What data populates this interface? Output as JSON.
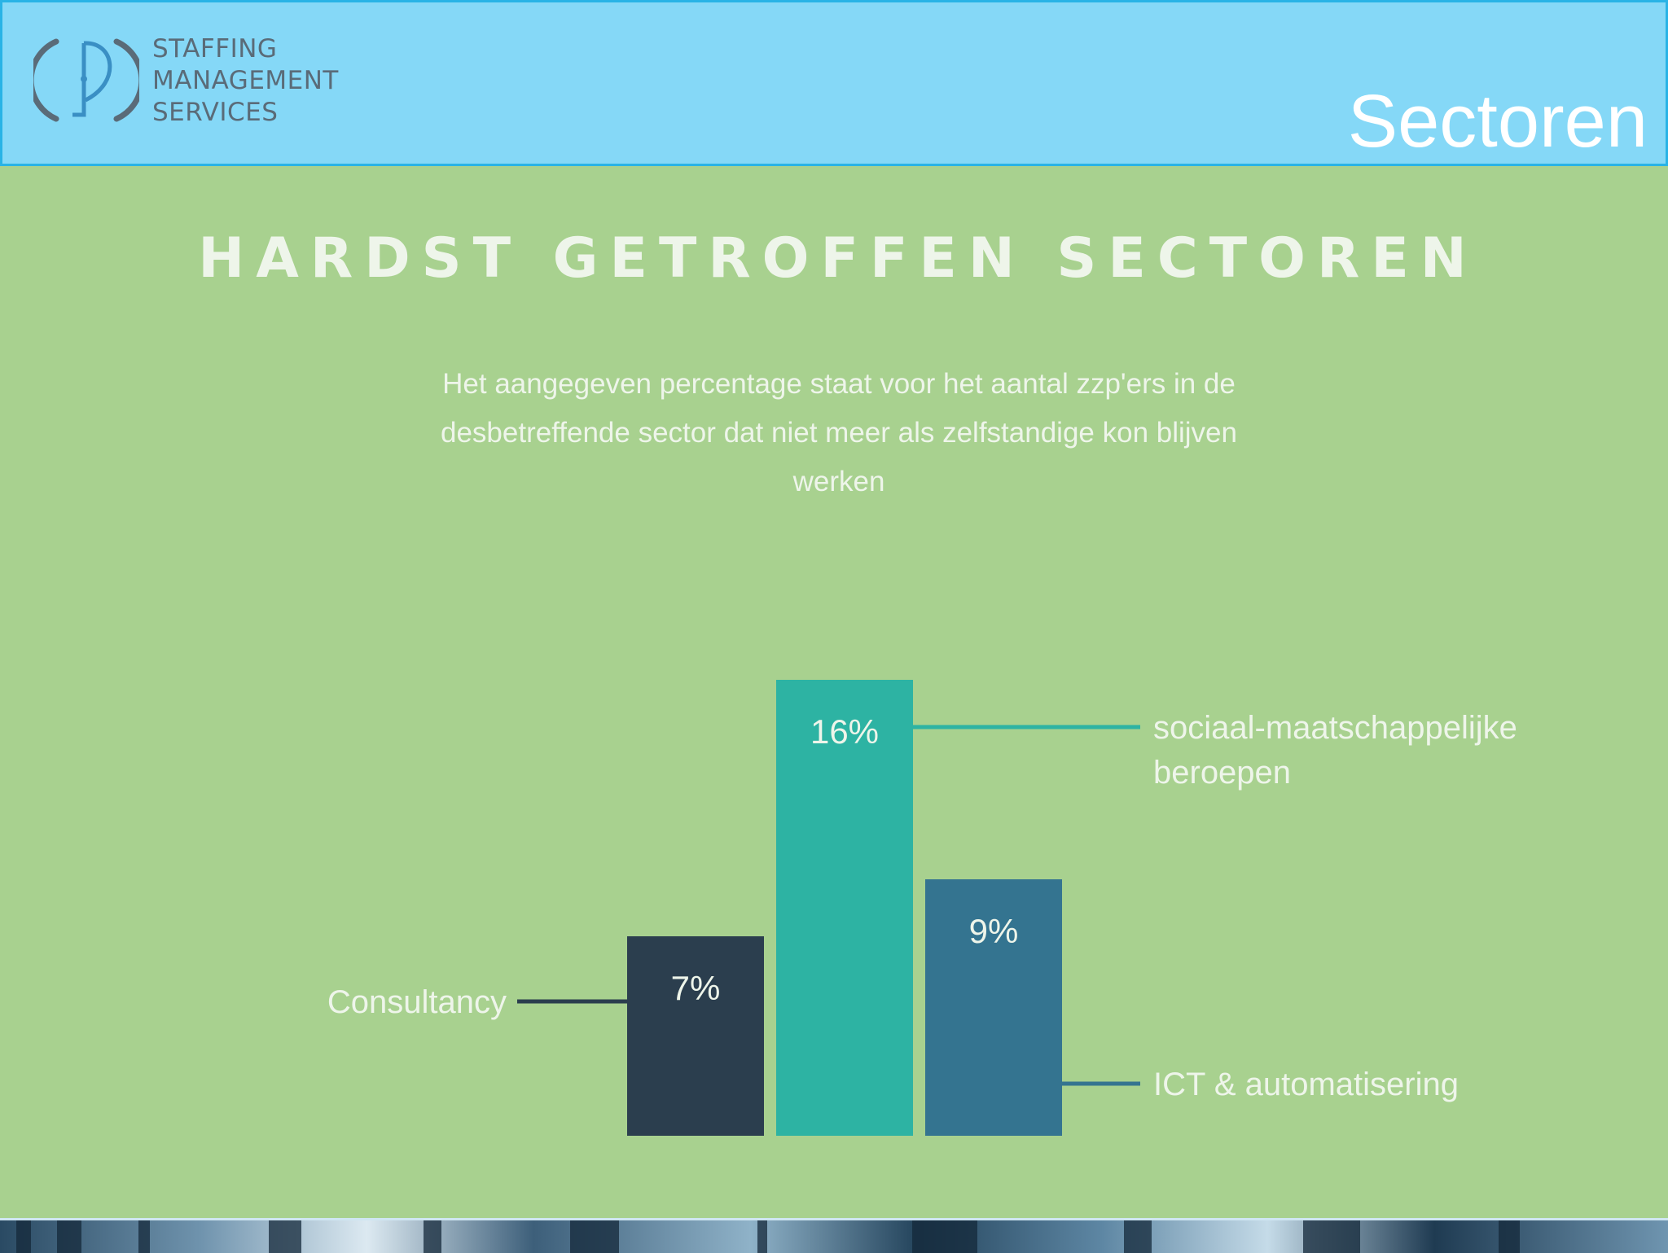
{
  "header": {
    "logo_lines": [
      "STAFFING",
      "MANAGEMENT",
      "SERVICES"
    ],
    "slide_title": "Sectoren"
  },
  "colors": {
    "header_bg": "#85d8f7",
    "panel_bg": "#a8d18f",
    "consultancy": "#2b3e4e",
    "sociaal": "#2db3a3",
    "ict": "#347490"
  },
  "chart_data": {
    "type": "bar",
    "title": "HARDST GETROFFEN SECTOREN",
    "subtitle_lines": [
      "Het aangegeven percentage staat voor het aantal zzp'ers in de",
      "desbetreffende sector dat niet meer als zelfstandige kon blijven",
      "werken"
    ],
    "categories": [
      "Consultancy",
      "sociaal-maatschappelijke beroepen",
      "ICT & automatisering"
    ],
    "category_label_lines": [
      [
        "Consultancy"
      ],
      [
        "sociaal-maatschappelijke",
        "beroepen"
      ],
      [
        "ICT & automatisering"
      ]
    ],
    "values": [
      7,
      16,
      9
    ],
    "value_labels": [
      "7%",
      "16%",
      "9%"
    ],
    "label_sides": [
      "left",
      "right",
      "right"
    ],
    "bar_colors": [
      "#2b3e4e",
      "#2db3a3",
      "#347490"
    ],
    "ylim": [
      0,
      16
    ],
    "grid": false,
    "legend": "none"
  }
}
